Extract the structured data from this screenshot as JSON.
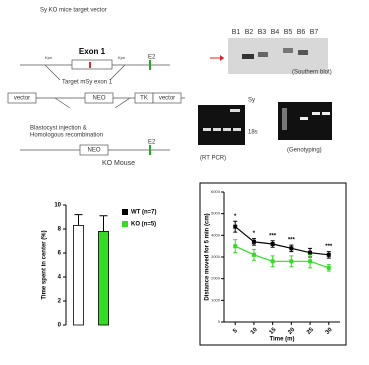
{
  "diagram": {
    "title": "Sy KO mice target vector",
    "exon": "Exon 1",
    "site_left": "Kpn",
    "site_right": "Kpn",
    "e2_top": "E2",
    "target": "Target mSy exon 1",
    "vector_left": "vector",
    "neo_mid": "NEO",
    "tk": "TK",
    "vector_right": "vector",
    "step": "Blastocyst injection &",
    "step2": "Homologous recombination",
    "neo_bottom": "NEO",
    "e2_bottom": "E2",
    "ko_mouse": "KO Mouse"
  },
  "gels": {
    "lanes": [
      "B1",
      "B2",
      "B3",
      "B4",
      "B5",
      "B6",
      "B7"
    ],
    "southern": "(Southern blot)",
    "rtpcr": "(RT PCR)",
    "genotyping": "(Genotyping)",
    "sy": "Sy",
    "r18s": "18s"
  },
  "chart_data": [
    {
      "type": "bar",
      "ylabel": "Time spent in center (%)",
      "categories": [
        null,
        null
      ],
      "series": [
        {
          "name": "WT (n=7)",
          "color": "#ffffff",
          "values": [
            8.3,
            null
          ],
          "errors": [
            0.9,
            null
          ]
        },
        {
          "name": "KO (n=5)",
          "color": "#33dd22",
          "values": [
            null,
            7.8
          ],
          "errors": [
            null,
            1.3
          ]
        }
      ],
      "ylim": [
        0,
        10
      ],
      "yticks": [
        0,
        2,
        4,
        6,
        8,
        10
      ]
    },
    {
      "type": "line",
      "xlabel": "Time (m)",
      "ylabel": "Distance moved for 5 min (cm)",
      "x": [
        5,
        10,
        15,
        20,
        25,
        30
      ],
      "series": [
        {
          "color": "#000000",
          "values": [
            4400,
            3700,
            3600,
            3400,
            3200,
            3100
          ],
          "errors": [
            250,
            150,
            150,
            150,
            200,
            150
          ]
        },
        {
          "color": "#33dd22",
          "values": [
            3500,
            3100,
            2800,
            2800,
            2800,
            2500
          ],
          "errors": [
            300,
            250,
            250,
            250,
            300,
            150
          ]
        }
      ],
      "significance": [
        "*",
        "*",
        "***",
        "***",
        null,
        "***"
      ],
      "xlim": [
        2,
        33
      ],
      "xticks": [
        5,
        10,
        15,
        20,
        25,
        30
      ],
      "ylim": [
        0,
        6000
      ],
      "yticks": [
        0,
        1000,
        2000,
        3000,
        4000,
        5000,
        6000
      ]
    }
  ]
}
